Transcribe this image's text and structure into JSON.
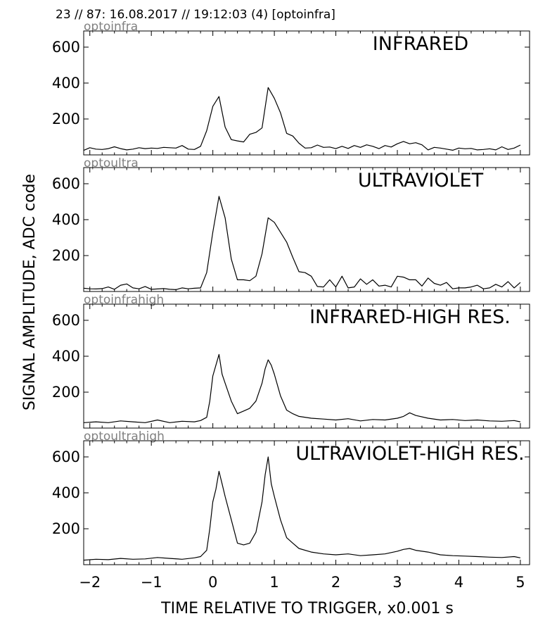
{
  "header": "23 // 87:   16.08.2017 // 19:12:03 (4)  [optoinfra]",
  "xlabel": "TIME RELATIVE TO TRIGGER,   x0.001 s",
  "ylabel": "SIGNAL AMPLITUDE,  ADC code",
  "chart_data": [
    {
      "type": "line",
      "subtitle": "optoinfra",
      "title": "INFRARED",
      "xlim": [
        -2.1,
        5.15
      ],
      "ylim": [
        0,
        690
      ],
      "yticks": [
        200,
        400,
        600
      ],
      "series": [
        {
          "x": [
            -2.1,
            -2.0,
            -1.9,
            -1.8,
            -1.7,
            -1.6,
            -1.5,
            -1.4,
            -1.3,
            -1.2,
            -1.1,
            -1.0,
            -0.9,
            -0.8,
            -0.7,
            -0.6,
            -0.5,
            -0.4,
            -0.3,
            -0.2,
            -0.1,
            0.0,
            0.1,
            0.2,
            0.3,
            0.4,
            0.5,
            0.6,
            0.7,
            0.8,
            0.9,
            1.0,
            1.1,
            1.2,
            1.3,
            1.4,
            1.5,
            1.6,
            1.7,
            1.8,
            1.9,
            2.0,
            2.1,
            2.2,
            2.3,
            2.4,
            2.5,
            2.6,
            2.7,
            2.8,
            2.9,
            3.0,
            3.1,
            3.2,
            3.3,
            3.4,
            3.5,
            3.6,
            3.7,
            3.8,
            3.9,
            4.0,
            4.1,
            4.2,
            4.3,
            4.4,
            4.5,
            4.6,
            4.7,
            4.8,
            4.9,
            5.0
          ],
          "y": [
            25,
            40,
            32,
            30,
            35,
            45,
            35,
            28,
            32,
            40,
            35,
            38,
            36,
            42,
            40,
            38,
            52,
            32,
            30,
            48,
            135,
            270,
            325,
            155,
            85,
            78,
            72,
            115,
            125,
            150,
            375,
            315,
            235,
            120,
            105,
            65,
            38,
            40,
            55,
            42,
            44,
            35,
            48,
            36,
            52,
            42,
            56,
            48,
            35,
            52,
            44,
            62,
            75,
            62,
            68,
            56,
            28,
            42,
            38,
            32,
            26,
            38,
            34,
            36,
            28,
            30,
            34,
            28,
            45,
            30,
            38,
            55
          ]
        }
      ]
    },
    {
      "type": "line",
      "subtitle": "optoultra",
      "title": "ULTRAVIOLET",
      "xlim": [
        -2.1,
        5.15
      ],
      "ylim": [
        0,
        690
      ],
      "yticks": [
        200,
        400,
        600
      ],
      "series": [
        {
          "x": [
            -2.1,
            -2.0,
            -1.9,
            -1.8,
            -1.7,
            -1.6,
            -1.5,
            -1.4,
            -1.3,
            -1.2,
            -1.1,
            -1.0,
            -0.9,
            -0.8,
            -0.7,
            -0.6,
            -0.5,
            -0.4,
            -0.3,
            -0.2,
            -0.1,
            0.0,
            0.1,
            0.2,
            0.3,
            0.4,
            0.5,
            0.6,
            0.7,
            0.8,
            0.9,
            1.0,
            1.1,
            1.2,
            1.3,
            1.4,
            1.5,
            1.6,
            1.7,
            1.8,
            1.9,
            2.0,
            2.1,
            2.2,
            2.3,
            2.4,
            2.5,
            2.6,
            2.7,
            2.8,
            2.9,
            3.0,
            3.1,
            3.2,
            3.3,
            3.4,
            3.5,
            3.6,
            3.7,
            3.8,
            3.9,
            4.0,
            4.1,
            4.2,
            4.3,
            4.4,
            4.5,
            4.6,
            4.7,
            4.8,
            4.9,
            5.0
          ],
          "y": [
            18,
            15,
            14,
            16,
            25,
            12,
            35,
            42,
            20,
            15,
            28,
            12,
            14,
            16,
            12,
            10,
            20,
            15,
            18,
            20,
            105,
            330,
            530,
            410,
            180,
            65,
            65,
            60,
            85,
            210,
            410,
            385,
            330,
            275,
            190,
            110,
            105,
            85,
            28,
            25,
            65,
            25,
            85,
            20,
            25,
            70,
            40,
            65,
            30,
            35,
            25,
            85,
            80,
            65,
            65,
            30,
            75,
            45,
            35,
            50,
            15,
            20,
            20,
            25,
            35,
            15,
            20,
            40,
            25,
            55,
            20,
            50
          ]
        }
      ]
    },
    {
      "type": "line",
      "subtitle": "optoinfrahigh",
      "title": "INFRARED-HIGH RES.",
      "xlim": [
        -2.1,
        5.15
      ],
      "ylim": [
        0,
        690
      ],
      "yticks": [
        200,
        400,
        600
      ],
      "series": [
        {
          "x": [
            -2.1,
            -1.9,
            -1.7,
            -1.5,
            -1.3,
            -1.1,
            -0.9,
            -0.7,
            -0.5,
            -0.3,
            -0.2,
            -0.1,
            -0.05,
            0.0,
            0.05,
            0.1,
            0.15,
            0.2,
            0.3,
            0.4,
            0.5,
            0.6,
            0.7,
            0.8,
            0.85,
            0.9,
            0.95,
            1.0,
            1.1,
            1.2,
            1.3,
            1.4,
            1.6,
            1.8,
            2.0,
            2.2,
            2.4,
            2.6,
            2.8,
            3.0,
            3.1,
            3.2,
            3.3,
            3.5,
            3.7,
            3.9,
            4.1,
            4.3,
            4.5,
            4.7,
            4.9,
            5.0
          ],
          "y": [
            30,
            35,
            30,
            40,
            35,
            30,
            45,
            30,
            38,
            35,
            42,
            60,
            150,
            290,
            350,
            410,
            300,
            250,
            150,
            80,
            95,
            110,
            150,
            250,
            330,
            380,
            350,
            300,
            180,
            100,
            80,
            65,
            55,
            50,
            45,
            52,
            40,
            48,
            45,
            55,
            65,
            85,
            70,
            55,
            45,
            48,
            42,
            45,
            40,
            38,
            42,
            35
          ]
        }
      ]
    },
    {
      "type": "line",
      "subtitle": "optoultrahigh",
      "title": "ULTRAVIOLET-HIGH RES.",
      "xlim": [
        -2.1,
        5.15
      ],
      "ylim": [
        0,
        690
      ],
      "yticks": [
        200,
        400,
        600
      ],
      "series": [
        {
          "x": [
            -2.1,
            -1.9,
            -1.7,
            -1.5,
            -1.3,
            -1.1,
            -0.9,
            -0.7,
            -0.5,
            -0.3,
            -0.2,
            -0.1,
            -0.05,
            0.0,
            0.05,
            0.1,
            0.15,
            0.2,
            0.3,
            0.4,
            0.5,
            0.6,
            0.7,
            0.8,
            0.85,
            0.9,
            0.95,
            1.0,
            1.1,
            1.2,
            1.3,
            1.4,
            1.6,
            1.8,
            2.0,
            2.2,
            2.4,
            2.6,
            2.8,
            3.0,
            3.1,
            3.2,
            3.3,
            3.5,
            3.7,
            3.9,
            4.1,
            4.3,
            4.5,
            4.7,
            4.9,
            5.0
          ],
          "y": [
            25,
            30,
            28,
            35,
            30,
            32,
            40,
            35,
            30,
            38,
            45,
            80,
            200,
            350,
            420,
            520,
            450,
            380,
            250,
            120,
            110,
            120,
            180,
            350,
            500,
            600,
            450,
            380,
            250,
            150,
            120,
            90,
            70,
            60,
            55,
            60,
            50,
            55,
            60,
            75,
            85,
            90,
            80,
            70,
            55,
            50,
            48,
            45,
            42,
            40,
            45,
            38
          ]
        }
      ]
    }
  ],
  "x_ticks": [
    "−2",
    "−1",
    "0",
    "1",
    "2",
    "3",
    "4",
    "5"
  ]
}
